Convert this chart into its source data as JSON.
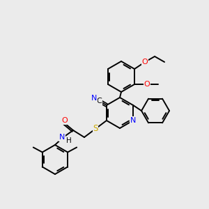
{
  "bg_color": "#ebebeb",
  "bond_color": "#000000",
  "atom_colors": {
    "N": "#0000ff",
    "O": "#ff0000",
    "S": "#ccaa00",
    "C": "#000000",
    "H": "#000000"
  },
  "figsize": [
    3.0,
    3.0
  ],
  "dpi": 100,
  "lw": 1.4,
  "r_ring": 22,
  "font_size": 7.5
}
